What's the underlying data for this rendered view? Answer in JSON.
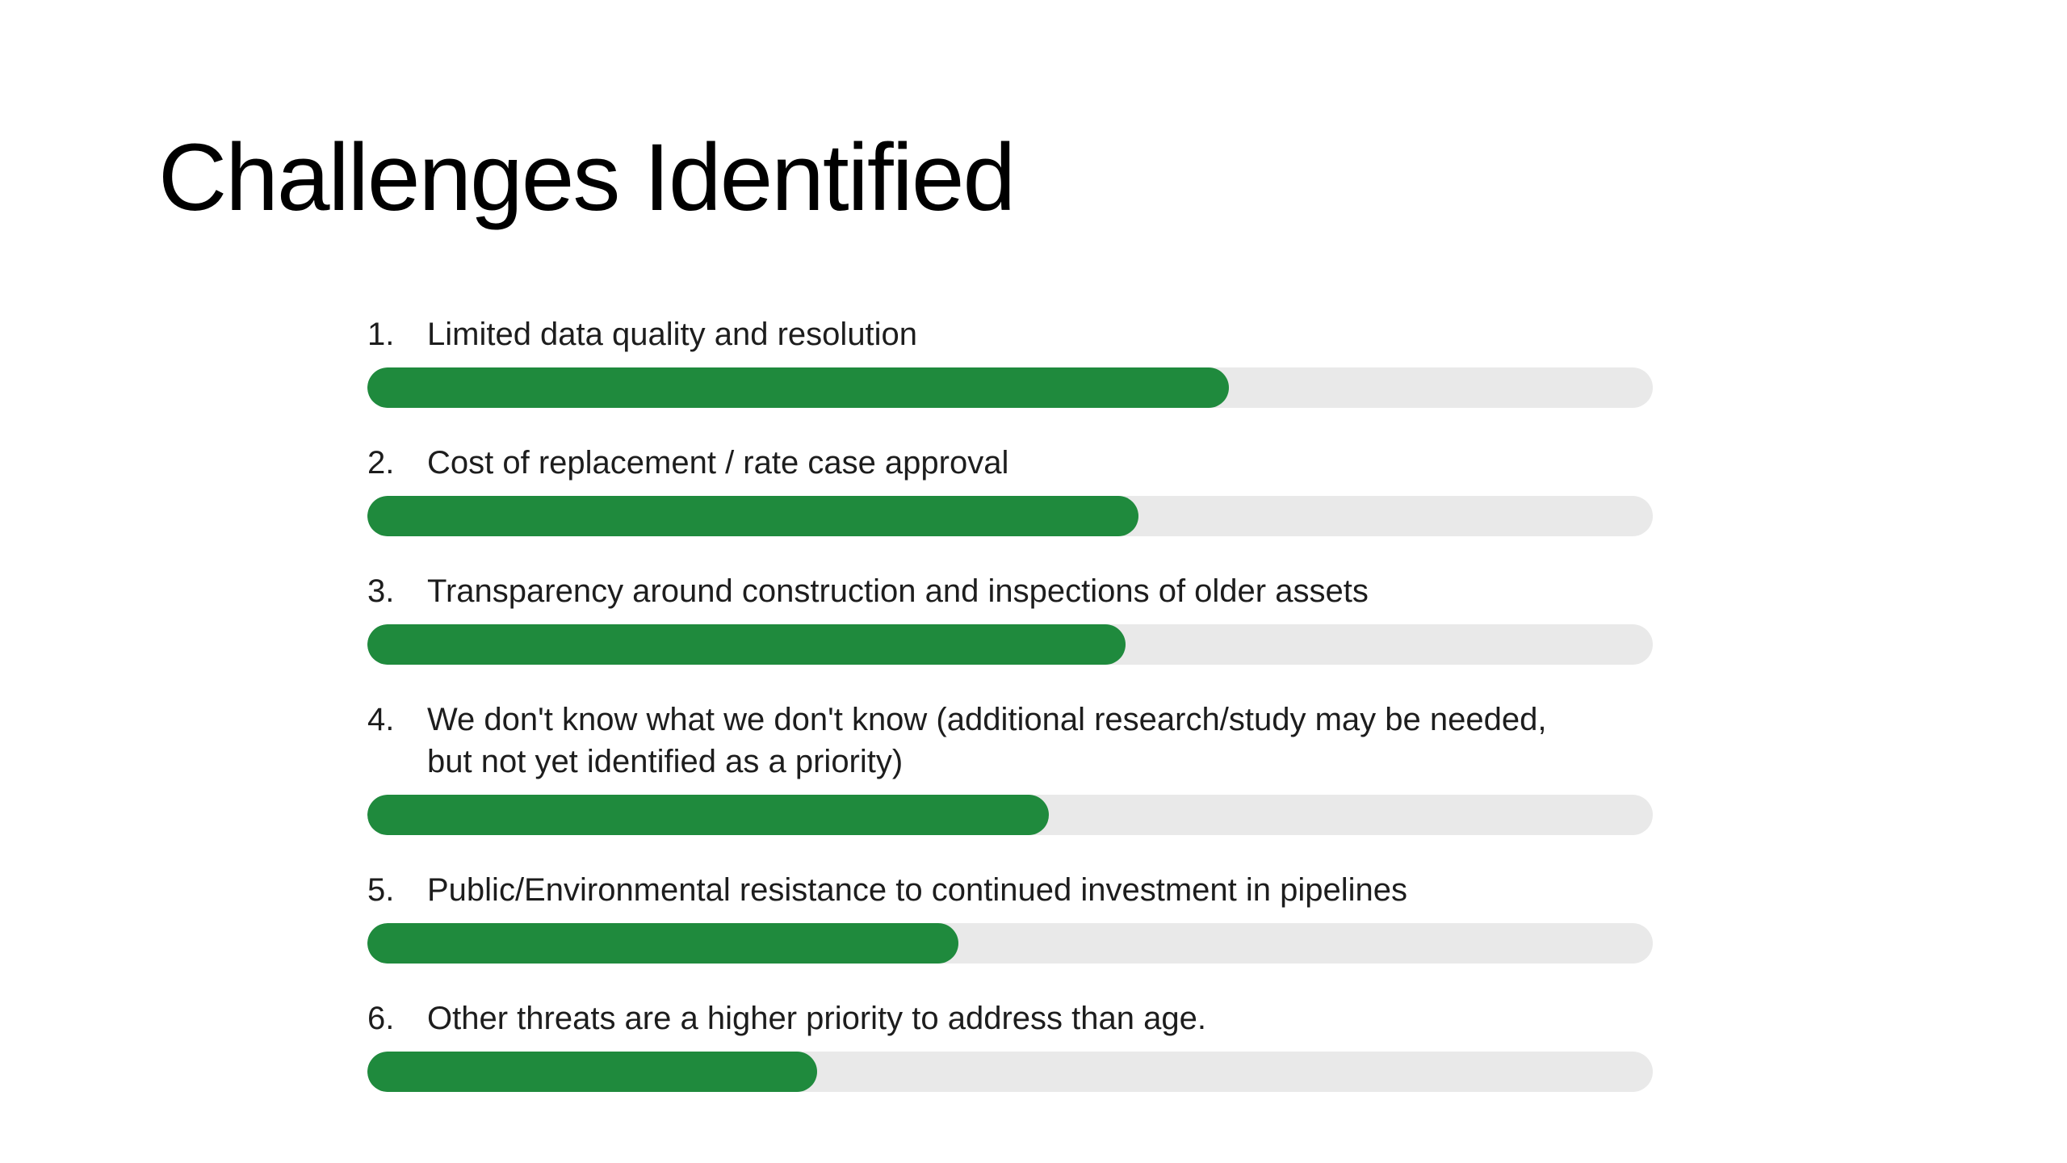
{
  "slide": {
    "title": "Challenges Identified"
  },
  "colors": {
    "background": "#ffffff",
    "title_text": "#000000",
    "body_text": "#1d1d1d",
    "bar_fill_green": "#1f8a3d",
    "bar_track_gray": "#e9e9e9"
  },
  "chart_data": {
    "type": "bar",
    "orientation": "horizontal",
    "title": "Challenges Identified",
    "categories": [
      "Limited data quality and resolution",
      "Cost of replacement / rate case approval",
      "Transparency around construction and inspections of older assets",
      "We don't know what we don't know (additional research/study may be needed, but not yet identified as a priority)",
      "Public/Environmental resistance to continued investment in pipelines",
      "Other threats are a higher priority to address than age."
    ],
    "values": [
      67,
      60,
      59,
      53,
      46,
      35
    ],
    "value_note": "percent of track filled, estimated from bar pixel lengths; no numeric labels are shown on the slide",
    "xlabel": "",
    "ylabel": "",
    "xlim": [
      0,
      100
    ],
    "grid": false,
    "legend": false,
    "data_labels": false
  },
  "items": [
    {
      "number": "1.",
      "label": "Limited data quality and resolution",
      "percent": 67
    },
    {
      "number": "2.",
      "label": "Cost of replacement / rate case approval",
      "percent": 60
    },
    {
      "number": "3.",
      "label": "Transparency around construction and inspections of older assets",
      "percent": 59
    },
    {
      "number": "4.",
      "label": "We don't know what we don't know (additional research/study may be needed, but not yet identified as a priority)",
      "percent": 53
    },
    {
      "number": "5.",
      "label": "Public/Environmental resistance to continued investment in pipelines",
      "percent": 46
    },
    {
      "number": "6.",
      "label": "Other threats are a higher priority to address than age.",
      "percent": 35
    }
  ]
}
